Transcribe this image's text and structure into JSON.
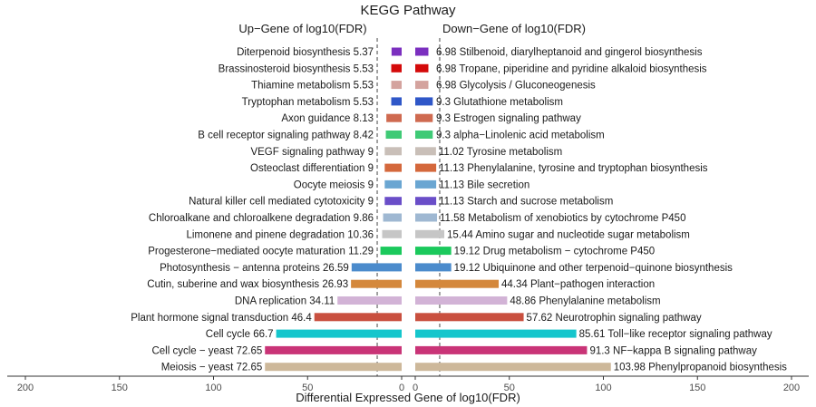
{
  "chart_data": {
    "type": "bar",
    "title": "KEGG Pathway",
    "xlabel": "Differential Expressed Gene of log10(FDR)",
    "x_ticks": [
      "200",
      "150",
      "100",
      "50",
      "0",
      "0",
      "50",
      "100",
      "150",
      "200"
    ],
    "threshold_value": 13,
    "up": {
      "name": "Up−Gene of log10(FDR)",
      "xlim": [
        200,
        0
      ],
      "bars": [
        {
          "label": "Diterpenoid biosynthesis",
          "value_label": "5.37",
          "value": 5.37,
          "color": "#7b2fbf"
        },
        {
          "label": "Brassinosteroid biosynthesis",
          "value_label": "5.53",
          "value": 5.53,
          "color": "#d40a0a"
        },
        {
          "label": "Thiamine metabolism",
          "value_label": "5.53",
          "value": 5.53,
          "color": "#d4a39e"
        },
        {
          "label": "Tryptophan metabolism",
          "value_label": "5.53",
          "value": 5.53,
          "color": "#2f57c8"
        },
        {
          "label": "Axon guidance",
          "value_label": "8.13",
          "value": 8.13,
          "color": "#cf6a50"
        },
        {
          "label": "B cell receptor signaling pathway",
          "value_label": "8.42",
          "value": 8.42,
          "color": "#3fca76"
        },
        {
          "label": "VEGF signaling pathway",
          "value_label": "9",
          "value": 9,
          "color": "#c9bfb8"
        },
        {
          "label": "Osteoclast differentiation",
          "value_label": "9",
          "value": 9,
          "color": "#d4683c"
        },
        {
          "label": "Oocyte meiosis",
          "value_label": "9",
          "value": 9,
          "color": "#6aa6d2"
        },
        {
          "label": "Natural killer cell mediated cytotoxicity",
          "value_label": "9",
          "value": 9,
          "color": "#6a4ec8"
        },
        {
          "label": "Chloroalkane and chloroalkene degradation",
          "value_label": "9.86",
          "value": 9.86,
          "color": "#9fb8d2"
        },
        {
          "label": "Limonene and pinene degradation",
          "value_label": "10.36",
          "value": 10.36,
          "color": "#c6c6c6"
        },
        {
          "label": "Progesterone−mediated oocyte maturation",
          "value_label": "11.29",
          "value": 11.29,
          "color": "#1bc95c"
        },
        {
          "label": "Photosynthesis − antenna proteins",
          "value_label": "26.59",
          "value": 26.59,
          "color": "#4b8bcc"
        },
        {
          "label": "Cutin, suberine and wax biosynthesis",
          "value_label": "26.93",
          "value": 26.93,
          "color": "#d4883c"
        },
        {
          "label": "DNA replication",
          "value_label": "34.11",
          "value": 34.11,
          "color": "#d2b3d6"
        },
        {
          "label": "Plant hormone signal transduction",
          "value_label": "46.4",
          "value": 46.4,
          "color": "#c9503f"
        },
        {
          "label": "Cell cycle",
          "value_label": "66.7",
          "value": 66.7,
          "color": "#15c6cc"
        },
        {
          "label": "Cell cycle − yeast",
          "value_label": "72.65",
          "value": 72.65,
          "color": "#c93477"
        },
        {
          "label": "Meiosis − yeast",
          "value_label": "72.65",
          "value": 72.65,
          "color": "#cdb89a"
        }
      ]
    },
    "down": {
      "name": "Down−Gene of log10(FDR)",
      "xlim": [
        0,
        200
      ],
      "bars": [
        {
          "label": "Stilbenoid, diarylheptanoid and gingerol biosynthesis",
          "value_label": "6.98",
          "value": 6.98,
          "color": "#7b2fbf"
        },
        {
          "label": "Tropane, piperidine and pyridine alkaloid biosynthesis",
          "value_label": "6.98",
          "value": 6.98,
          "color": "#d40a0a"
        },
        {
          "label": "Glycolysis / Gluconeogenesis",
          "value_label": "6.98",
          "value": 6.98,
          "color": "#d4a39e"
        },
        {
          "label": "Glutathione metabolism",
          "value_label": "9.3",
          "value": 9.3,
          "color": "#2f57c8"
        },
        {
          "label": "Estrogen signaling pathway",
          "value_label": "9.3",
          "value": 9.3,
          "color": "#cf6a50"
        },
        {
          "label": "alpha−Linolenic acid metabolism",
          "value_label": "9.3",
          "value": 9.3,
          "color": "#3fca76"
        },
        {
          "label": "Tyrosine metabolism",
          "value_label": "11.02",
          "value": 11.02,
          "color": "#c9bfb8"
        },
        {
          "label": "Phenylalanine, tyrosine and tryptophan biosynthesis",
          "value_label": "11.13",
          "value": 11.13,
          "color": "#d4683c"
        },
        {
          "label": "Bile secretion",
          "value_label": "11.13",
          "value": 11.13,
          "color": "#6aa6d2"
        },
        {
          "label": "Starch and sucrose metabolism",
          "value_label": "11.13",
          "value": 11.13,
          "color": "#6a4ec8"
        },
        {
          "label": "Metabolism of xenobiotics by cytochrome P450",
          "value_label": "11.58",
          "value": 11.58,
          "color": "#9fb8d2"
        },
        {
          "label": "Amino sugar and nucleotide sugar metabolism",
          "value_label": "15.44",
          "value": 15.44,
          "color": "#c6c6c6"
        },
        {
          "label": "Drug metabolism − cytochrome P450",
          "value_label": "19.12",
          "value": 19.12,
          "color": "#1bc95c"
        },
        {
          "label": "Ubiquinone and other terpenoid−quinone biosynthesis",
          "value_label": "19.12",
          "value": 19.12,
          "color": "#4b8bcc"
        },
        {
          "label": "Plant−pathogen interaction",
          "value_label": "44.34",
          "value": 44.34,
          "color": "#d4883c"
        },
        {
          "label": "Phenylalanine metabolism",
          "value_label": "48.86",
          "value": 48.86,
          "color": "#d2b3d6"
        },
        {
          "label": "Neurotrophin signaling pathway",
          "value_label": "57.62",
          "value": 57.62,
          "color": "#c9503f"
        },
        {
          "label": "Toll−like receptor signaling pathway",
          "value_label": "85.61",
          "value": 85.61,
          "color": "#15c6cc"
        },
        {
          "label": "NF−kappa B signaling pathway",
          "value_label": "91.3",
          "value": 91.3,
          "color": "#c93477"
        },
        {
          "label": "Phenylpropanoid biosynthesis",
          "value_label": "103.98",
          "value": 103.98,
          "color": "#cdb89a"
        }
      ]
    }
  }
}
